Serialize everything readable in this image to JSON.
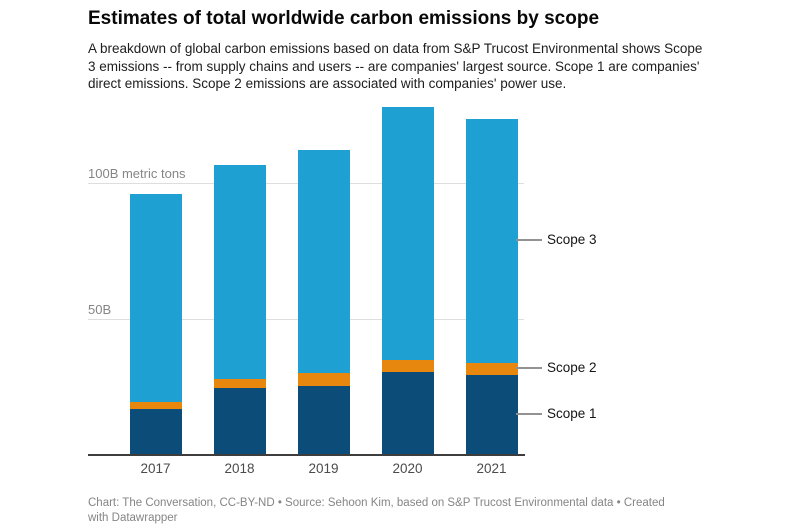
{
  "header": {
    "title": "Estimates of total worldwide carbon emissions by scope",
    "description": "A breakdown of global carbon emissions based on data from S&P Trucost Environmental shows Scope 3 emissions -- from supply chains and users -- are companies' largest source. Scope 1 are companies' direct emissions. Scope 2 emissions are associated with companies' power use."
  },
  "chart_data": {
    "type": "bar",
    "stacked": true,
    "title": "Estimates of total worldwide carbon emissions by scope",
    "unit": "billion metric tons",
    "categories": [
      "2017",
      "2018",
      "2019",
      "2020",
      "2021"
    ],
    "series": [
      {
        "name": "Scope 1",
        "color": "#0b4d78",
        "values": [
          17.0,
          24.5,
          25.5,
          30.5,
          29.5
        ]
      },
      {
        "name": "Scope 2",
        "color": "#e8870e",
        "values": [
          2.5,
          3.5,
          4.5,
          4.5,
          4.5
        ]
      },
      {
        "name": "Scope 3",
        "color": "#1fa0d2",
        "values": [
          76.5,
          78.5,
          82.0,
          93.0,
          89.5
        ]
      }
    ],
    "totals": [
      96.0,
      106.5,
      112.0,
      128.0,
      123.5
    ],
    "yticks": [
      {
        "value": 50,
        "label": "50B"
      },
      {
        "value": 100,
        "label": "100B metric tons"
      }
    ],
    "ylim": [
      0,
      132
    ],
    "grid": true,
    "legend_position": "right-annotations",
    "xlabel": "",
    "ylabel": "metric tons"
  },
  "footer": {
    "text": "Chart: The Conversation, CC-BY-ND • Source: Sehoon Kim, based on S&P Trucost Environmental data • Created with Datawrapper"
  }
}
